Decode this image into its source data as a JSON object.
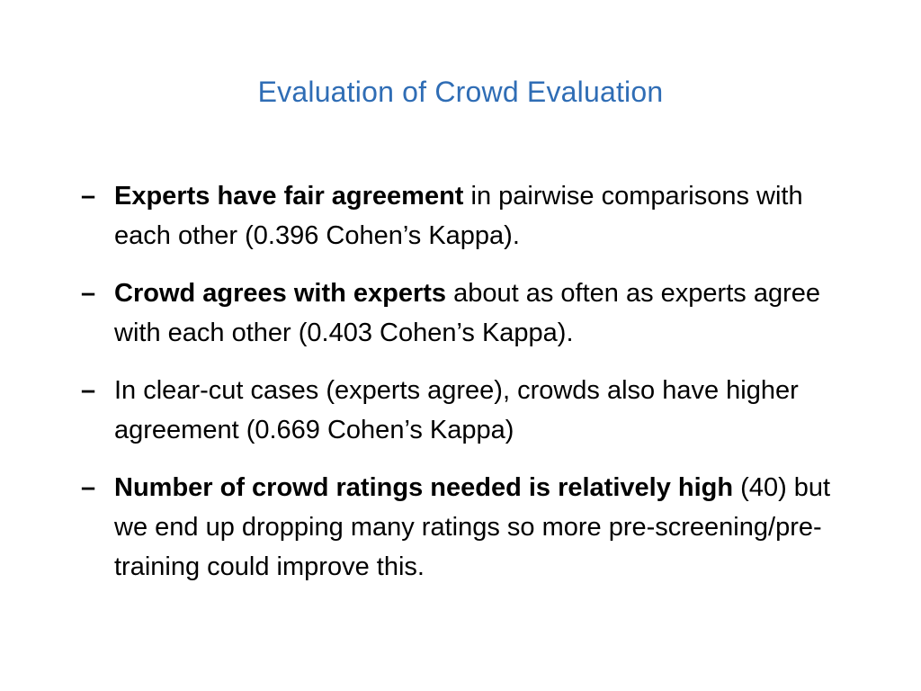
{
  "title": "Evaluation of Crowd Evaluation",
  "bullets": [
    {
      "bold": "Experts have fair agreement",
      "rest": " in pairwise comparisons with each other (0.396 Cohen’s Kappa)."
    },
    {
      "bold": "Crowd agrees with experts",
      "rest": " about as often as experts agree with each other (0.403 Cohen’s Kappa)."
    },
    {
      "bold": "",
      "rest": "In clear-cut cases (experts agree), crowds also have higher agreement (0.669 Cohen’s Kappa)"
    },
    {
      "bold": "Number of crowd ratings needed is relatively high",
      "rest": " (40) but we end up dropping many ratings so more pre-screening/pre-training could improve this."
    }
  ],
  "dash_symbol": "–"
}
